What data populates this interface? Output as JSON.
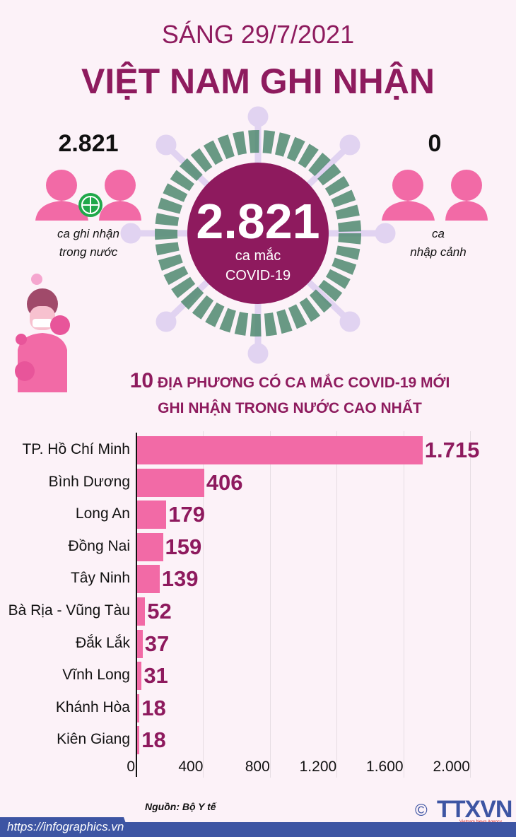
{
  "header": {
    "date": "SÁNG 29/7/2021",
    "title": "VIỆT NAM GHI NHẬN"
  },
  "domestic": {
    "value": "2.821",
    "caption1": "ca ghi nhận",
    "caption2": "trong nước"
  },
  "imported": {
    "value": "0",
    "caption1": "ca",
    "caption2": "nhập cảnh"
  },
  "total": {
    "value": "2.821",
    "caption1": "ca mắc",
    "caption2": "COVID-19"
  },
  "chart_heading": {
    "num": "10",
    "line1": "ĐỊA PHƯƠNG CÓ CA MẮC COVID-19 MỚI",
    "line2": "GHI NHẬN TRONG NƯỚC CAO NHẤT"
  },
  "chart_data": {
    "type": "bar",
    "orientation": "horizontal",
    "categories": [
      "TP. Hồ Chí Minh",
      "Bình Dương",
      "Long An",
      "Đồng Nai",
      "Tây Ninh",
      "Bà Rịa - Vũng Tàu",
      "Đắk Lắk",
      "Vĩnh Long",
      "Khánh Hòa",
      "Kiên Giang"
    ],
    "values": [
      1715,
      406,
      179,
      159,
      139,
      52,
      37,
      31,
      18,
      18
    ],
    "value_labels": [
      "1.715",
      "406",
      "179",
      "159",
      "139",
      "52",
      "37",
      "31",
      "18",
      "18"
    ],
    "xlim": [
      0,
      2000
    ],
    "ticks": [
      "0",
      "400",
      "800",
      "1.200",
      "1.600",
      "2.000"
    ],
    "tick_values": [
      0,
      400,
      800,
      1200,
      1600,
      2000
    ],
    "grid": true,
    "bar_color": "#f26aa6",
    "label_color": "#8e1a5e"
  },
  "source": "Nguồn: Bộ Y tế",
  "footer": {
    "url": "https://infographics.vn",
    "logo": "TTXVN",
    "logo_sub": "Vietnam News Agency",
    "copyright": "©"
  }
}
